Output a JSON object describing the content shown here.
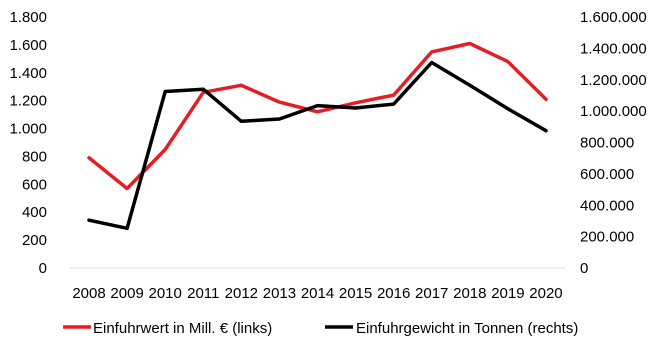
{
  "chart_data": {
    "type": "line",
    "categories": [
      "2008",
      "2009",
      "2010",
      "2011",
      "2012",
      "2013",
      "2014",
      "2015",
      "2016",
      "2017",
      "2018",
      "2019",
      "2020"
    ],
    "y_left": {
      "range": [
        0,
        1800
      ],
      "ticks": [
        0,
        200,
        400,
        600,
        800,
        1000,
        1200,
        1400,
        1600,
        1800
      ],
      "tick_labels": [
        "0",
        "200",
        "400",
        "600",
        "800",
        "1.000",
        "1.200",
        "1.400",
        "1.600",
        "1.800"
      ]
    },
    "y_right": {
      "range": [
        0,
        1600000
      ],
      "ticks": [
        0,
        200000,
        400000,
        600000,
        800000,
        1000000,
        1200000,
        1400000,
        1600000
      ],
      "tick_labels": [
        "0",
        "200.000",
        "400.000",
        "600.000",
        "800.000",
        "1.000.000",
        "1.200.000",
        "1.400.000",
        "1.600.000"
      ]
    },
    "series": [
      {
        "name": "Einfuhrwert in Mill. € (links)",
        "axis": "left",
        "color": "#e31e24",
        "values": [
          790,
          570,
          850,
          1260,
          1310,
          1190,
          1120,
          1185,
          1240,
          1550,
          1610,
          1480,
          1210
        ]
      },
      {
        "name": "Einfuhrgewicht in Tonnen (rechts)",
        "axis": "right",
        "color": "#000000",
        "values": [
          305000,
          253000,
          1125000,
          1140000,
          935000,
          950000,
          1035000,
          1020000,
          1045000,
          1310000,
          1165000,
          1015000,
          875000
        ]
      }
    ],
    "grid": false,
    "legend": "bottom"
  }
}
